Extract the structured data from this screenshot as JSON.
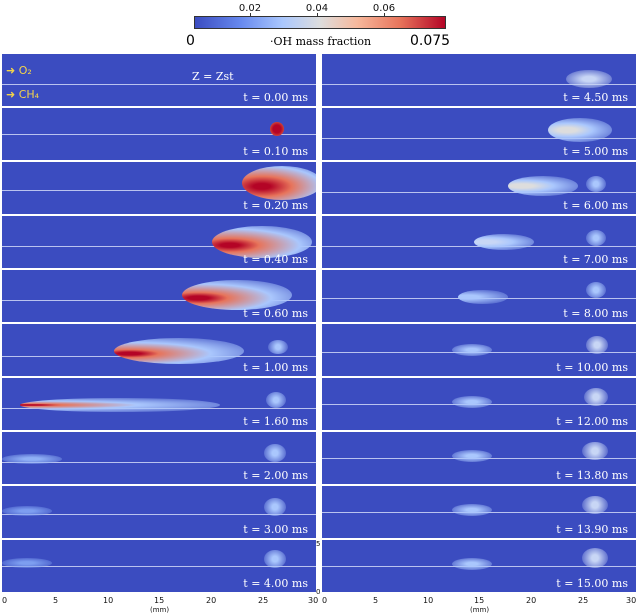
{
  "colorbar": {
    "ticks": [
      "0.02",
      "0.04",
      "0.06"
    ],
    "min_label": "0",
    "max_label": "0.075",
    "title": "·OH mass fraction"
  },
  "annotations": {
    "o2": "O₂",
    "ch4": "CH₄",
    "z_label": "Z = Zst"
  },
  "left_panels": [
    "t = 0.00 ms",
    "t = 0.10 ms",
    "t = 0.20 ms",
    "t = 0.40 ms",
    "t = 0.60 ms",
    "t = 1.00 ms",
    "t = 1.60 ms",
    "t = 2.00 ms",
    "t = 3.00 ms",
    "t = 4.00 ms"
  ],
  "right_panels": [
    "t = 4.50 ms",
    "t = 5.00 ms",
    "t = 6.00 ms",
    "t = 7.00 ms",
    "t = 8.00 ms",
    "t = 10.00 ms",
    "t = 12.00 ms",
    "t = 13.80 ms",
    "t = 13.90 ms",
    "t = 15.00 ms"
  ],
  "x_axis": {
    "ticks": [
      "0",
      "5",
      "10",
      "15",
      "20",
      "25",
      "30"
    ],
    "unit": "(mm)"
  },
  "y_axis": {
    "ticks": [
      "0",
      "5"
    ]
  },
  "colors": {
    "background": "#3b4cc0",
    "hot": "#b40426"
  }
}
